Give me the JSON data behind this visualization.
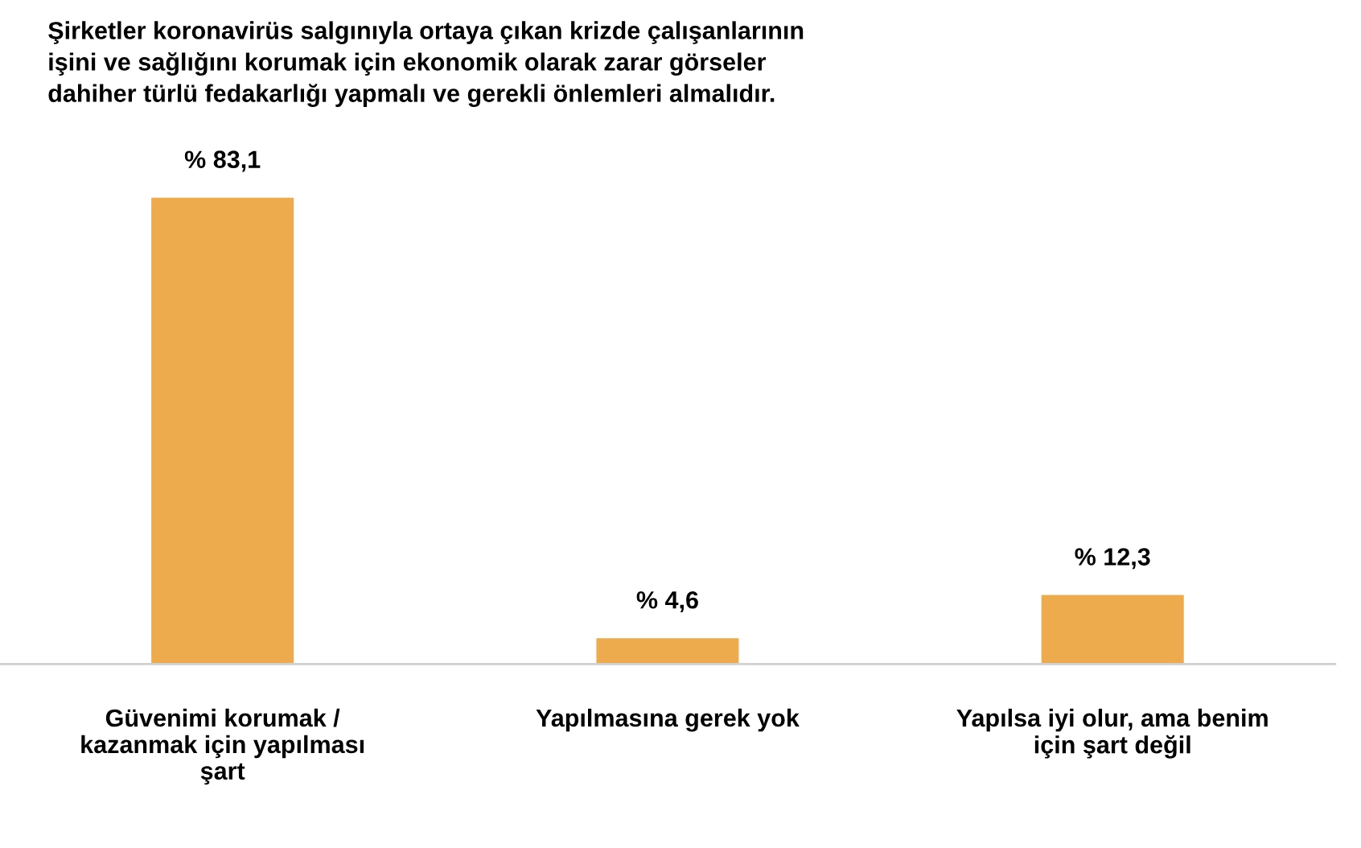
{
  "chart_data": {
    "type": "bar",
    "title": "Şirketler koronavirüs salgınıyla ortaya çıkan krizde çalışanlarının\nişini ve sağlığını korumak için ekonomik olarak zarar görseler\ndahiher türlü fedakarlığı yapmalı ve gerekli önlemleri almalıdır.",
    "categories": [
      "Güvenimi korumak /\nkazanmak için yapılması\nşart",
      "Yapılmasına gerek yok",
      "Yapılsa iyi olur, ama benim\niçin şart değil"
    ],
    "values": [
      83.1,
      4.6,
      12.3
    ],
    "value_labels": [
      "% 83,1",
      "% 4,6",
      "% 12,3"
    ],
    "color": "#eeab4d",
    "grid": false,
    "legend": false
  }
}
